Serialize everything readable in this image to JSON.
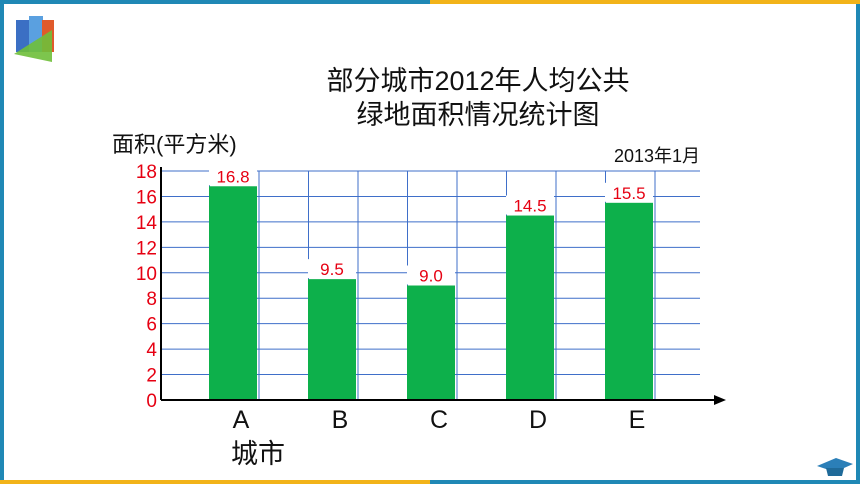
{
  "chart_data": {
    "type": "bar",
    "title_line1": "部分城市2012年人均公共",
    "title_line2": "绿地面积情况统计图",
    "ylabel": "面积(平方米)",
    "xlabel": "城市",
    "date_note": "2013年1月",
    "categories": [
      "A",
      "B",
      "C",
      "D",
      "E"
    ],
    "values": [
      16.8,
      9.5,
      9.0,
      14.5,
      15.5
    ],
    "data_labels": [
      "16.8",
      "9.5",
      "9.0",
      "14.5",
      "15.5"
    ],
    "ylim": [
      0,
      18
    ],
    "yticks": [
      "0",
      "2",
      "4",
      "6",
      "8",
      "10",
      "12",
      "14",
      "16",
      "18"
    ],
    "grid": true,
    "colors": {
      "bar": "#0db04b",
      "grid": "#3f6fc9",
      "tick": "#e60012"
    }
  }
}
